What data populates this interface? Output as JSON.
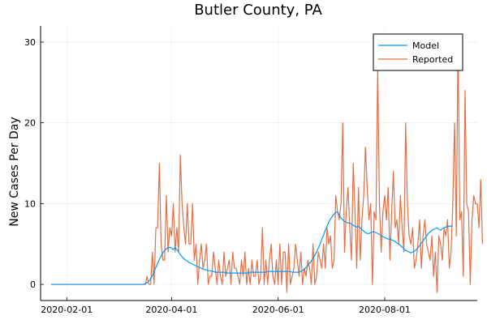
{
  "chart_data": {
    "type": "line",
    "title": "Butler County, PA",
    "xlabel": "",
    "ylabel": "New Cases Per Day",
    "x_start": "2020-01-23",
    "x_end": "2020-09-15",
    "xlim": [
      "2020-01-17",
      "2020-09-23"
    ],
    "ylim": [
      -2,
      32
    ],
    "x_ticks": [
      "2020-02-01",
      "2020-04-01",
      "2020-06-01",
      "2020-08-01"
    ],
    "y_ticks": [
      0,
      10,
      20,
      30
    ],
    "grid": true,
    "legend_position": "top-right",
    "colors": {
      "model": "#009AFA",
      "reported": "#E26F46"
    },
    "series": [
      {
        "name": "Model",
        "values": [
          0,
          0,
          0,
          0,
          0,
          0,
          0,
          0,
          0,
          0,
          0,
          0,
          0,
          0,
          0,
          0,
          0,
          0,
          0,
          0,
          0,
          0,
          0,
          0,
          0,
          0,
          0,
          0,
          0,
          0,
          0,
          0,
          0,
          0,
          0,
          0,
          0,
          0,
          0,
          0,
          0,
          0,
          0,
          0,
          0,
          0,
          0,
          0,
          0,
          0,
          0,
          0,
          0,
          0,
          0.1,
          0.2,
          0.4,
          0.7,
          1.1,
          1.6,
          2.1,
          2.6,
          3.1,
          3.5,
          3.9,
          4.2,
          4.4,
          4.5,
          4.6,
          4.5,
          4.3,
          4.6,
          4.3,
          4.0,
          3.7,
          3.4,
          3.2,
          3.0,
          2.9,
          2.7,
          2.6,
          2.5,
          2.4,
          2.3,
          2.2,
          2.1,
          2.0,
          1.9,
          1.8,
          1.8,
          1.7,
          1.7,
          1.6,
          1.6,
          1.5,
          1.5,
          1.5,
          1.5,
          1.5,
          1.5,
          1.4,
          1.4,
          1.4,
          1.4,
          1.4,
          1.4,
          1.4,
          1.4,
          1.4,
          1.4,
          1.4,
          1.4,
          1.4,
          1.4,
          1.5,
          1.5,
          1.5,
          1.5,
          1.5,
          1.5,
          1.5,
          1.5,
          1.5,
          1.5,
          1.6,
          1.6,
          1.6,
          1.6,
          1.6,
          1.6,
          1.6,
          1.6,
          1.6,
          1.6,
          1.6,
          1.6,
          1.6,
          1.6,
          1.5,
          1.5,
          1.5,
          1.5,
          1.5,
          1.6,
          1.7,
          1.9,
          2.1,
          2.3,
          2.6,
          2.9,
          3.2,
          3.6,
          4.0,
          4.5,
          5.0,
          5.6,
          6.1,
          6.7,
          7.2,
          7.7,
          8.1,
          8.4,
          8.7,
          8.9,
          9.0,
          8.6,
          8.2,
          8.0,
          7.8,
          7.7,
          7.6,
          7.6,
          7.5,
          7.3,
          7.2,
          7.1,
          7.2,
          7.0,
          6.8,
          6.6,
          6.4,
          6.3,
          6.3,
          6.4,
          6.5,
          6.5,
          6.4,
          6.3,
          6.2,
          6.0,
          5.9,
          5.8,
          5.7,
          5.6,
          5.6,
          5.5,
          5.4,
          5.3,
          5.1,
          5.0,
          4.8,
          4.6,
          4.4,
          4.2,
          4.1,
          4.0,
          3.9,
          4.0,
          4.1,
          4.3,
          4.5,
          4.8,
          5.1,
          5.4,
          5.7,
          6.0,
          6.3,
          6.5,
          6.7,
          6.8,
          6.9,
          7.0,
          6.8,
          6.7,
          6.9,
          7.0,
          7.1,
          7.2,
          7.2,
          7.2,
          7.3
        ]
      },
      {
        "name": "Reported",
        "values": [
          0,
          0,
          0,
          0,
          0,
          0,
          0,
          0,
          0,
          0,
          0,
          0,
          0,
          0,
          0,
          0,
          0,
          0,
          0,
          0,
          0,
          0,
          0,
          0,
          0,
          0,
          0,
          0,
          0,
          0,
          0,
          0,
          0,
          0,
          0,
          0,
          0,
          0,
          0,
          0,
          0,
          0,
          0,
          0,
          0,
          0,
          0,
          0,
          0,
          0,
          0,
          0,
          0,
          0,
          0,
          1,
          0,
          0,
          4,
          0,
          7,
          7,
          15,
          5,
          3,
          3,
          11,
          4,
          7,
          6,
          10,
          4,
          7,
          4,
          16,
          10,
          7,
          5,
          10,
          5,
          5,
          10,
          3,
          5,
          0,
          3,
          5,
          2,
          3,
          5,
          0,
          1,
          1,
          4,
          2,
          0,
          3,
          1,
          0,
          4,
          1,
          2,
          3,
          0,
          4,
          2,
          2,
          1,
          0,
          3,
          1,
          4,
          0,
          2,
          0,
          3,
          1,
          1,
          3,
          0,
          1,
          7,
          0,
          3,
          0,
          3,
          5,
          1,
          0,
          3,
          0,
          5,
          0,
          4,
          4,
          -1,
          5,
          0,
          1,
          2,
          5,
          3,
          1,
          4,
          0,
          2,
          1,
          3,
          2,
          0,
          5,
          0,
          1,
          4,
          3,
          2,
          5,
          2,
          7,
          5,
          6,
          2,
          3,
          11,
          9,
          8,
          10,
          20,
          4,
          9,
          12,
          7,
          3,
          15,
          9,
          2,
          12,
          3,
          8,
          11,
          17,
          12,
          8,
          10,
          0,
          9,
          8,
          27,
          10,
          4,
          9,
          11,
          8,
          12,
          3,
          9,
          14,
          7,
          8,
          5,
          11,
          7,
          4,
          20,
          10,
          6,
          5,
          7,
          2,
          3,
          5,
          8,
          2,
          6,
          8,
          5,
          4,
          3,
          6,
          1,
          4,
          -1,
          6,
          5,
          3,
          7,
          6,
          8,
          2,
          4,
          10,
          20,
          6,
          31,
          8,
          9,
          1,
          24,
          10,
          9,
          0,
          8,
          11,
          10,
          10,
          7,
          13,
          5
        ]
      }
    ]
  }
}
